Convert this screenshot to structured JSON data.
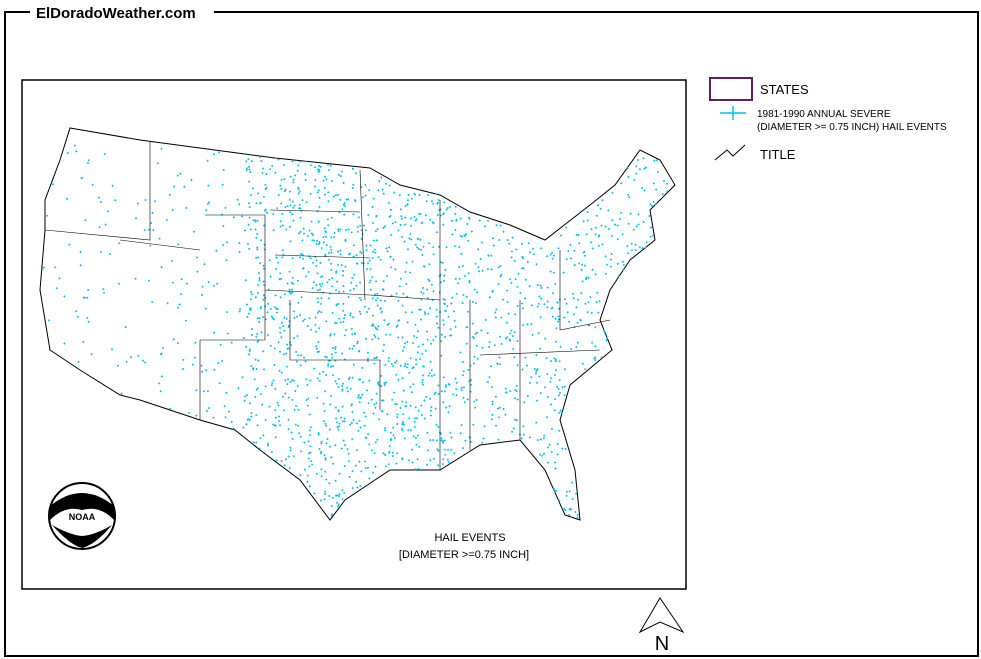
{
  "header": {
    "site": "ElDoradoWeather.com"
  },
  "legend": {
    "states": "STATES",
    "events_line1": "1981-1990 ANNUAL SEVERE",
    "events_line2": "(DIAMETER >= 0.75 INCH) HAIL EVENTS",
    "title": "TITLE"
  },
  "map": {
    "caption_line1": "HAIL EVENTS",
    "caption_line2": "[DIAMETER >=0.75 INCH]",
    "logo": "NOAA",
    "north": "N"
  }
}
